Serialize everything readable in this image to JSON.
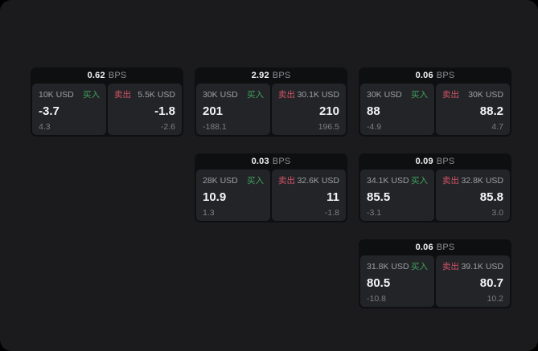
{
  "labels": {
    "bps_unit": "BPS",
    "buy": "买入",
    "sell": "卖出"
  },
  "colors": {
    "window_bg": "#1b1b1d",
    "card_bg": "#0e0f10",
    "panel_bg": "#232427",
    "buy_green": "#3fa35f",
    "sell_red": "#d05468",
    "value_white": "#f4f5f6",
    "muted_gray": "#9ba0a4"
  },
  "cards": [
    {
      "bps": "0.62",
      "buy": {
        "amount": "10K USD",
        "value": "-3.7",
        "sub": "4.3"
      },
      "sell": {
        "amount": "5.5K USD",
        "value": "-1.8",
        "sub": "-2.6"
      }
    },
    {
      "bps": "2.92",
      "buy": {
        "amount": "30K USD",
        "value": "201",
        "sub": "-188.1"
      },
      "sell": {
        "amount": "30.1K USD",
        "value": "210",
        "sub": "196.5"
      }
    },
    {
      "bps": "0.06",
      "buy": {
        "amount": "30K USD",
        "value": "88",
        "sub": "-4.9"
      },
      "sell": {
        "amount": "30K USD",
        "value": "88.2",
        "sub": "4.7"
      }
    },
    {
      "bps": "0.03",
      "buy": {
        "amount": "28K USD",
        "value": "10.9",
        "sub": "1.3"
      },
      "sell": {
        "amount": "32.6K USD",
        "value": "11",
        "sub": "-1.8"
      }
    },
    {
      "bps": "0.09",
      "buy": {
        "amount": "34.1K USD",
        "value": "85.5",
        "sub": "-3.1"
      },
      "sell": {
        "amount": "32.8K USD",
        "value": "85.8",
        "sub": "3.0"
      }
    },
    {
      "bps": "0.06",
      "buy": {
        "amount": "31.8K USD",
        "value": "80.5",
        "sub": "-10.8"
      },
      "sell": {
        "amount": "39.1K USD",
        "value": "80.7",
        "sub": "10.2"
      }
    }
  ]
}
